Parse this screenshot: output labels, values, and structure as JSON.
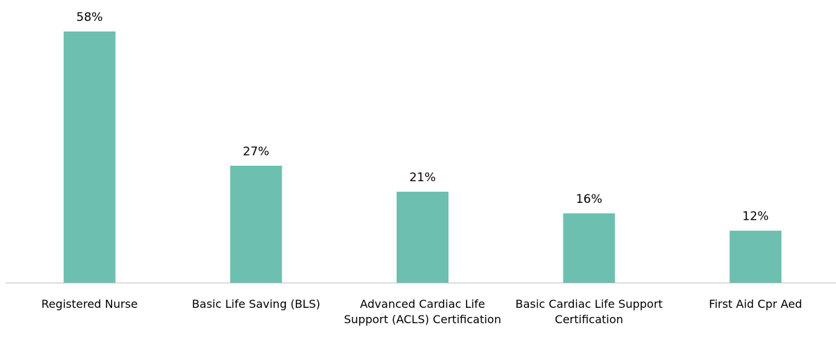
{
  "chart_data": {
    "type": "bar",
    "categories": [
      "Registered Nurse",
      "Basic Life Saving (BLS)",
      "Advanced Cardiac Life Support (ACLS) Certification",
      "Basic Cardiac Life Support Certification",
      "First Aid Cpr Aed"
    ],
    "values": [
      58,
      27,
      21,
      16,
      12
    ],
    "value_labels": [
      "58%",
      "27%",
      "21%",
      "16%",
      "12%"
    ],
    "color": "#6dbfb0"
  }
}
